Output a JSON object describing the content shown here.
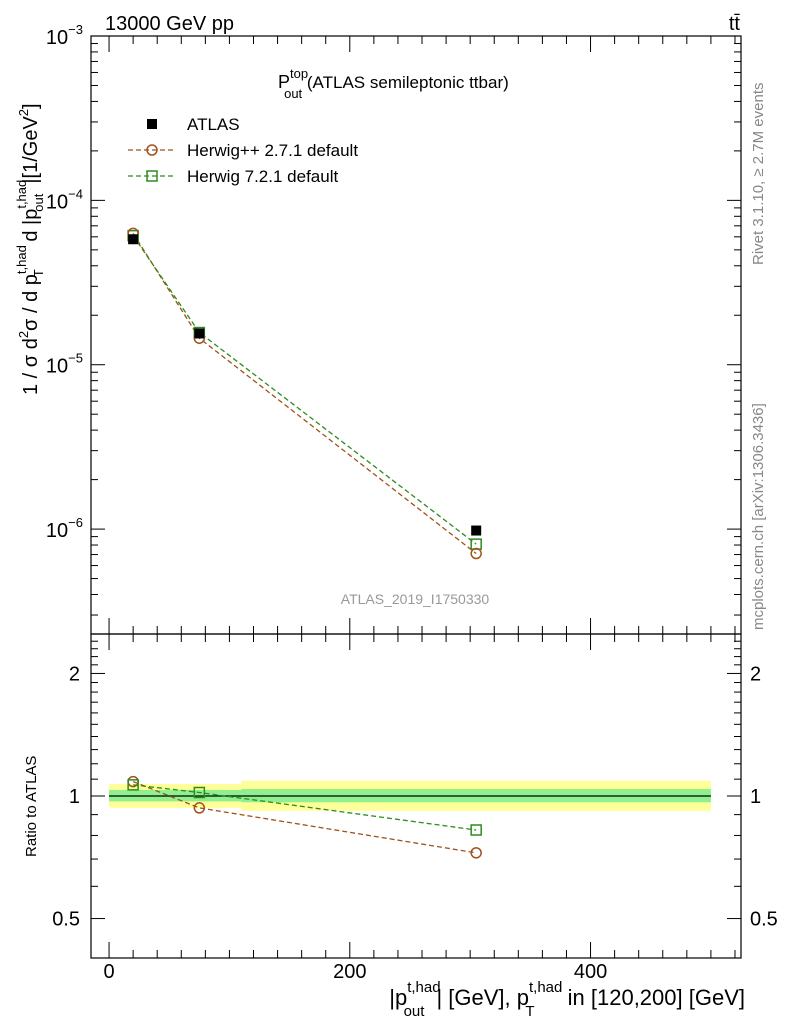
{
  "header": {
    "left": "13000 GeV pp",
    "right": "tt̄"
  },
  "side_text": {
    "upper": "Rivet 3.1.10, ≥ 2.7M events",
    "lower": "mcplots.cern.ch [arXiv:1306.3436]"
  },
  "watermark": "ATLAS_2019_I1750330",
  "colors": {
    "atlas": "#000000",
    "herwigpp": "#a0521a",
    "herwig7": "#2e8b1e",
    "band_inner": "#8ef08e",
    "band_outer": "#ffff99"
  },
  "chart_data": [
    {
      "type": "scatter",
      "panel": "main",
      "title": {
        "main": "P",
        "sup": "top",
        "sub": "out",
        "rest": " (ATLAS semileptonic ttbar)"
      },
      "ylabel": "1 / σ d²σ / d p_T^{t,had} d |p_out^{t,had}| [1/GeV²]",
      "yscale": "log",
      "ylim": [
        2.3e-07,
        0.001
      ],
      "xlim": [
        -15,
        525
      ],
      "yticks": [
        {
          "value": 0.001,
          "base": "10",
          "exp": "−3"
        },
        {
          "value": 0.0001,
          "base": "10",
          "exp": "−4"
        },
        {
          "value": 1e-05,
          "base": "10",
          "exp": "−5"
        },
        {
          "value": 1e-06,
          "base": "10",
          "exp": "−6"
        }
      ],
      "legend": {
        "placement": "top-left",
        "entries": [
          {
            "label": "ATLAS",
            "marker": "filled-square",
            "color": "#000000"
          },
          {
            "label": "Herwig++ 2.7.1 default",
            "marker": "open-circle",
            "color": "#a0521a"
          },
          {
            "label": "Herwig 7.2.1 default",
            "marker": "open-square",
            "color": "#2e8b1e"
          }
        ]
      },
      "series": [
        {
          "name": "ATLAS",
          "x": [
            20,
            75,
            305
          ],
          "y": [
            5.8e-05,
            1.55e-05,
            9.8e-07
          ],
          "bins": [
            [
              0,
              40
            ],
            [
              40,
              110
            ],
            [
              110,
              500
            ]
          ]
        },
        {
          "name": "Herwig++ 2.7.1 default",
          "x": [
            20,
            75,
            305
          ],
          "y": [
            6.3e-05,
            1.45e-05,
            7.1e-07
          ]
        },
        {
          "name": "Herwig 7.2.1 default",
          "x": [
            20,
            75,
            305
          ],
          "y": [
            6.1e-05,
            1.57e-05,
            8.1e-07
          ]
        }
      ]
    },
    {
      "type": "scatter",
      "panel": "ratio",
      "ylabel": "Ratio to ATLAS",
      "xlabel": {
        "p1_base": "|p",
        "p1_sup": "t,had",
        "p1_sub": "out",
        "mid": "| [GeV], p",
        "p2_sup": "t,had",
        "p2_sub": "T",
        "rest": " in [120,200] [GeV]"
      },
      "yscale": "log",
      "ylim": [
        0.4,
        2.5
      ],
      "xlim": [
        -15,
        525
      ],
      "xticks": [
        {
          "value": 0,
          "label": "0"
        },
        {
          "value": 200,
          "label": "200"
        },
        {
          "value": 400,
          "label": "400"
        }
      ],
      "yticks": [
        {
          "value": 2,
          "label": "2"
        },
        {
          "value": 1,
          "label": "1"
        },
        {
          "value": 0.5,
          "label": "0.5"
        }
      ],
      "bands": [
        {
          "x0": 0,
          "x1": 110,
          "inner": [
            0.97,
            1.035
          ],
          "outer": [
            0.935,
            1.07
          ]
        },
        {
          "x0": 110,
          "x1": 500,
          "inner": [
            0.965,
            1.04
          ],
          "outer": [
            0.92,
            1.09
          ]
        }
      ],
      "series": [
        {
          "name": "Herwig++ 2.7.1 default",
          "x": [
            20,
            75,
            305
          ],
          "y": [
            1.085,
            0.935,
            0.725
          ]
        },
        {
          "name": "Herwig 7.2.1 default",
          "x": [
            20,
            75,
            305
          ],
          "y": [
            1.065,
            1.02,
            0.825
          ]
        }
      ]
    }
  ]
}
